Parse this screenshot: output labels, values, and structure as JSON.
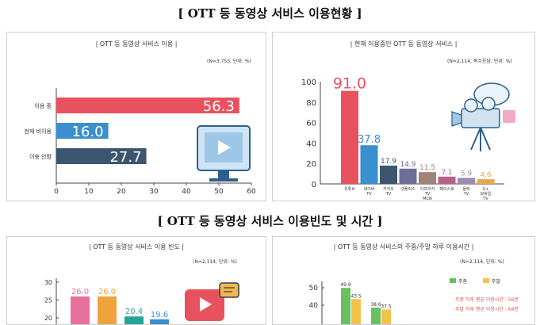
{
  "section1_title": "[ OTT 등 동영상 서비스 이용현황 ]",
  "section2_title": "[ OTT 등 동영상 서비스 이용빈도 및 시간 ]",
  "panels": {
    "usage": {
      "title": "| OTT 등 동영상 서비스 이용 |",
      "note": "(N=3,753, 단위: %)"
    },
    "services": {
      "title": "| 현재 이용중인 OTT 등 동영상 서비스 |",
      "note": "(N=2,114, 복수응답, 단위: %)"
    },
    "frequency": {
      "title": "| OTT 등 동영상 서비스 이용 빈도 |",
      "note": "(N=2,114, 단위: %)"
    },
    "time": {
      "title": "| OTT 등 동영상 서비스의 주중/주말 하루 이용시간 |",
      "note": "(N=2,114, 단위: %)",
      "avg_weekday": "주중 하루 평균 이용시간 : 56분",
      "avg_weekend": "주말 하루 평균 이용시간 : 64분"
    }
  },
  "colors": {
    "red": "#e8525f",
    "blue": "#3a8fcf",
    "navy": "#3b566e",
    "pink": "#e76f9b",
    "orange": "#f0a33a",
    "teal": "#27a39a",
    "green": "#6abf5e",
    "yellow": "#f2c24a"
  },
  "chart_data": [
    {
      "type": "bar",
      "orientation": "horizontal",
      "categories": [
        "이용 중",
        "현재 비이용",
        "이용 안함"
      ],
      "values": [
        56.3,
        16.0,
        27.7
      ],
      "xlim": [
        0,
        60
      ],
      "xticks": [
        0,
        10,
        20,
        30,
        40,
        50,
        60
      ]
    },
    {
      "type": "bar",
      "categories": [
        "유튜브",
        "네이버 TV",
        "카카오 TV",
        "넷플릭스",
        "아프리카 TV MCN",
        "페이스북",
        "올레 TV",
        "U+ 모바일 TV"
      ],
      "values": [
        91.0,
        37.8,
        17.9,
        14.9,
        11.5,
        7.1,
        5.9,
        4.6
      ],
      "ylim": [
        0,
        100
      ],
      "yticks": [
        0,
        20,
        40,
        60,
        80,
        100
      ]
    },
    {
      "type": "bar",
      "values": [
        26.0,
        26.0,
        20.4,
        19.6
      ],
      "yticks": [
        20,
        25,
        30
      ]
    },
    {
      "type": "bar",
      "legend": [
        "주중",
        "주말"
      ],
      "series": [
        {
          "name": "주중",
          "values": [
            49.9,
            38.6
          ]
        },
        {
          "name": "주말",
          "values": [
            43.5,
            37.5
          ]
        }
      ],
      "yticks": [
        40,
        50
      ]
    }
  ]
}
